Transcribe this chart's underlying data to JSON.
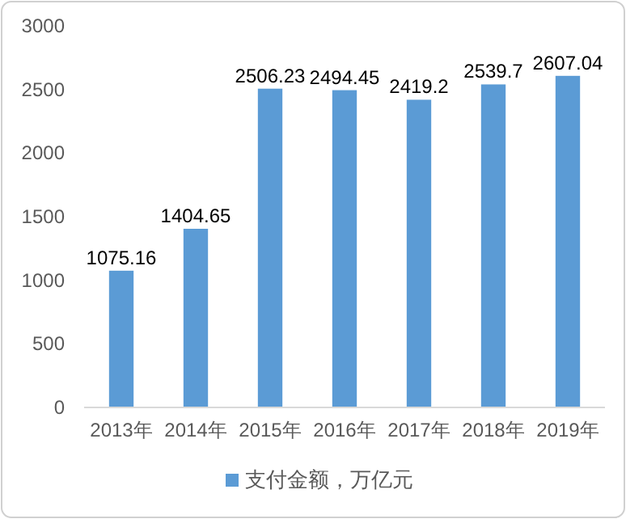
{
  "chart_data": {
    "type": "bar",
    "categories": [
      "2013年",
      "2014年",
      "2015年",
      "2016年",
      "2017年",
      "2018年",
      "2019年"
    ],
    "series": [
      {
        "name": "支付金额，万亿元",
        "color": "#5b9bd5",
        "values": [
          1075.16,
          1404.65,
          2506.23,
          2494.45,
          2419.2,
          2539.7,
          2607.04
        ]
      }
    ],
    "ylim": [
      0,
      3000
    ],
    "yticks": [
      0,
      500,
      1000,
      1500,
      2000,
      2500,
      3000
    ],
    "grid": false,
    "legend": "bottom",
    "data_labels": true
  }
}
